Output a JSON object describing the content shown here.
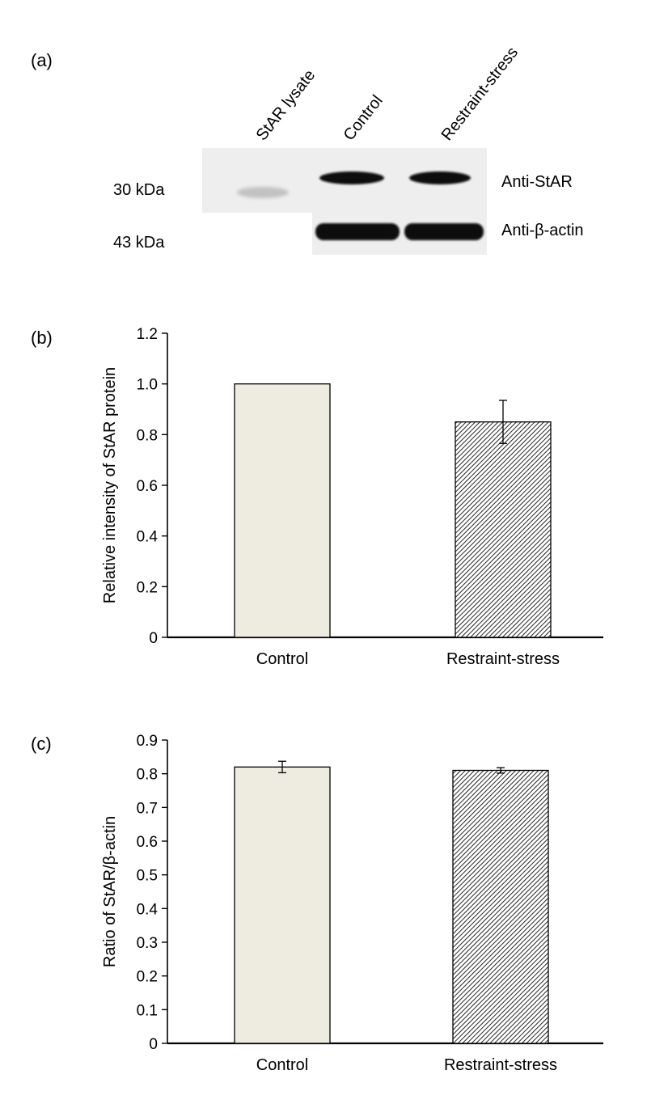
{
  "panels": {
    "a": {
      "label": "(a)"
    },
    "b": {
      "label": "(b)"
    },
    "c": {
      "label": "(c)"
    }
  },
  "blot": {
    "lanes": [
      "StAR lysate",
      "Control",
      "Restraint-stress"
    ],
    "markers": [
      "30 kDa",
      "43 kDa"
    ],
    "antibodies": [
      "Anti-StAR",
      "Anti-β-actin"
    ],
    "colors": {
      "background": "#eeeeee",
      "band": "#111111",
      "faint_band": "#c2c2c2"
    }
  },
  "chart_data": [
    {
      "type": "bar",
      "categories": [
        "Control",
        "Restraint-stress"
      ],
      "values": [
        1.0,
        0.85
      ],
      "error": [
        0,
        0.085
      ],
      "title": "",
      "xlabel": "",
      "ylabel": "Relative intensity of StAR protein",
      "ylim": [
        0,
        1.2
      ],
      "yticks": [
        "0",
        "0.2",
        "0.4",
        "0.6",
        "0.8",
        "1.0",
        "1.2"
      ],
      "grid": false,
      "bar_styles": [
        "solid",
        "hatched"
      ],
      "colors": {
        "control_fill": "#eeebe1",
        "stroke": "#000000"
      }
    },
    {
      "type": "bar",
      "categories": [
        "Control",
        "Restraint-stress"
      ],
      "values": [
        0.82,
        0.81
      ],
      "error": [
        0.017,
        0.008
      ],
      "title": "",
      "xlabel": "",
      "ylabel": "Ratio of StAR/β-actin",
      "ylim": [
        0,
        0.9
      ],
      "yticks": [
        "0",
        "0.1",
        "0.2",
        "0.3",
        "0.4",
        "0.5",
        "0.6",
        "0.7",
        "0.8",
        "0.9"
      ],
      "grid": false,
      "bar_styles": [
        "solid",
        "hatched"
      ],
      "colors": {
        "control_fill": "#eeebe1",
        "stroke": "#000000"
      }
    }
  ]
}
